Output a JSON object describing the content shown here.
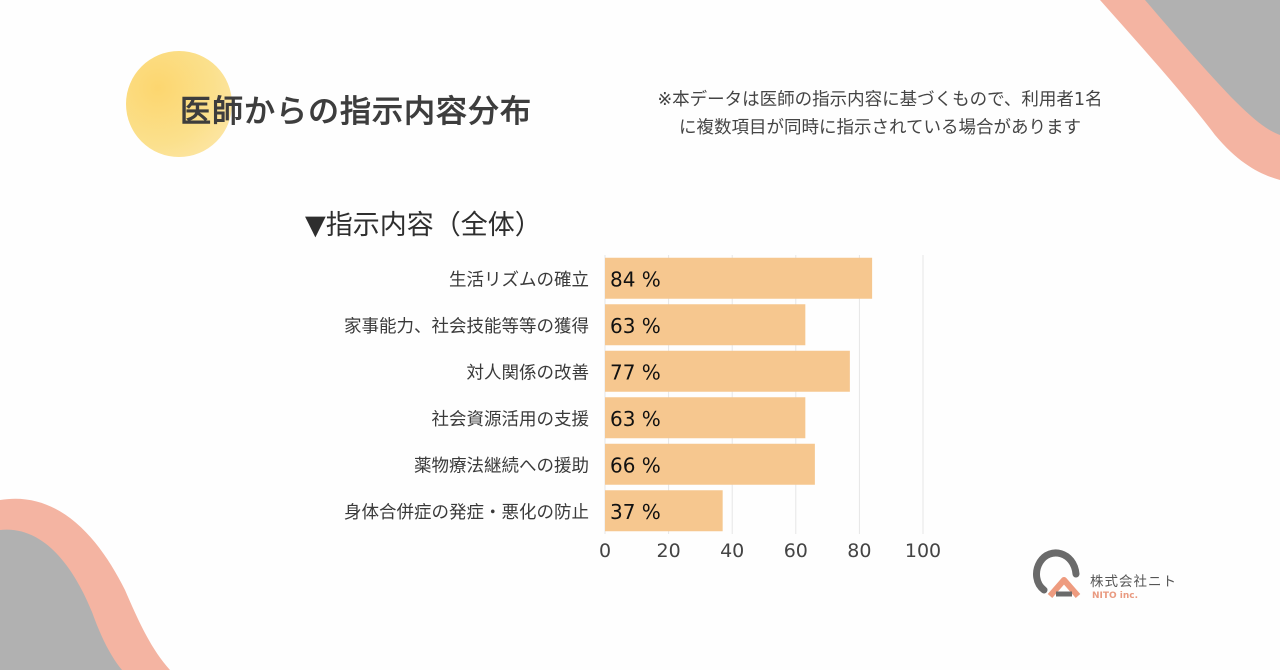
{
  "header": {
    "title": "医師からの指示内容分布",
    "note_line1": "※本データは医師の指示内容に基づくもので、利用者1名",
    "note_line2": "に複数項目が同時に指示されている場合があります"
  },
  "section_title": "▼指示内容（全体）",
  "colors": {
    "bar": "#f6c78f",
    "accent_pink": "#f4b4a2",
    "accent_gray": "#b1b1b1",
    "title_circle": "#fcd66f"
  },
  "chart_data": {
    "type": "bar",
    "orientation": "horizontal",
    "categories": [
      "生活リズムの確立",
      "家事能力、社会技能等等の獲得",
      "対人関係の改善",
      "社会資源活用の支援",
      "薬物療法継続への援助",
      "身体合併症の発症・悪化の防止"
    ],
    "values": [
      84,
      63,
      77,
      63,
      66,
      37
    ],
    "value_suffix": " %",
    "xlim": [
      0,
      100
    ],
    "xticks": [
      0,
      20,
      40,
      60,
      80,
      100
    ],
    "grid": true
  },
  "logo": {
    "name": "株式会社ニト",
    "sub": "NITO inc."
  }
}
